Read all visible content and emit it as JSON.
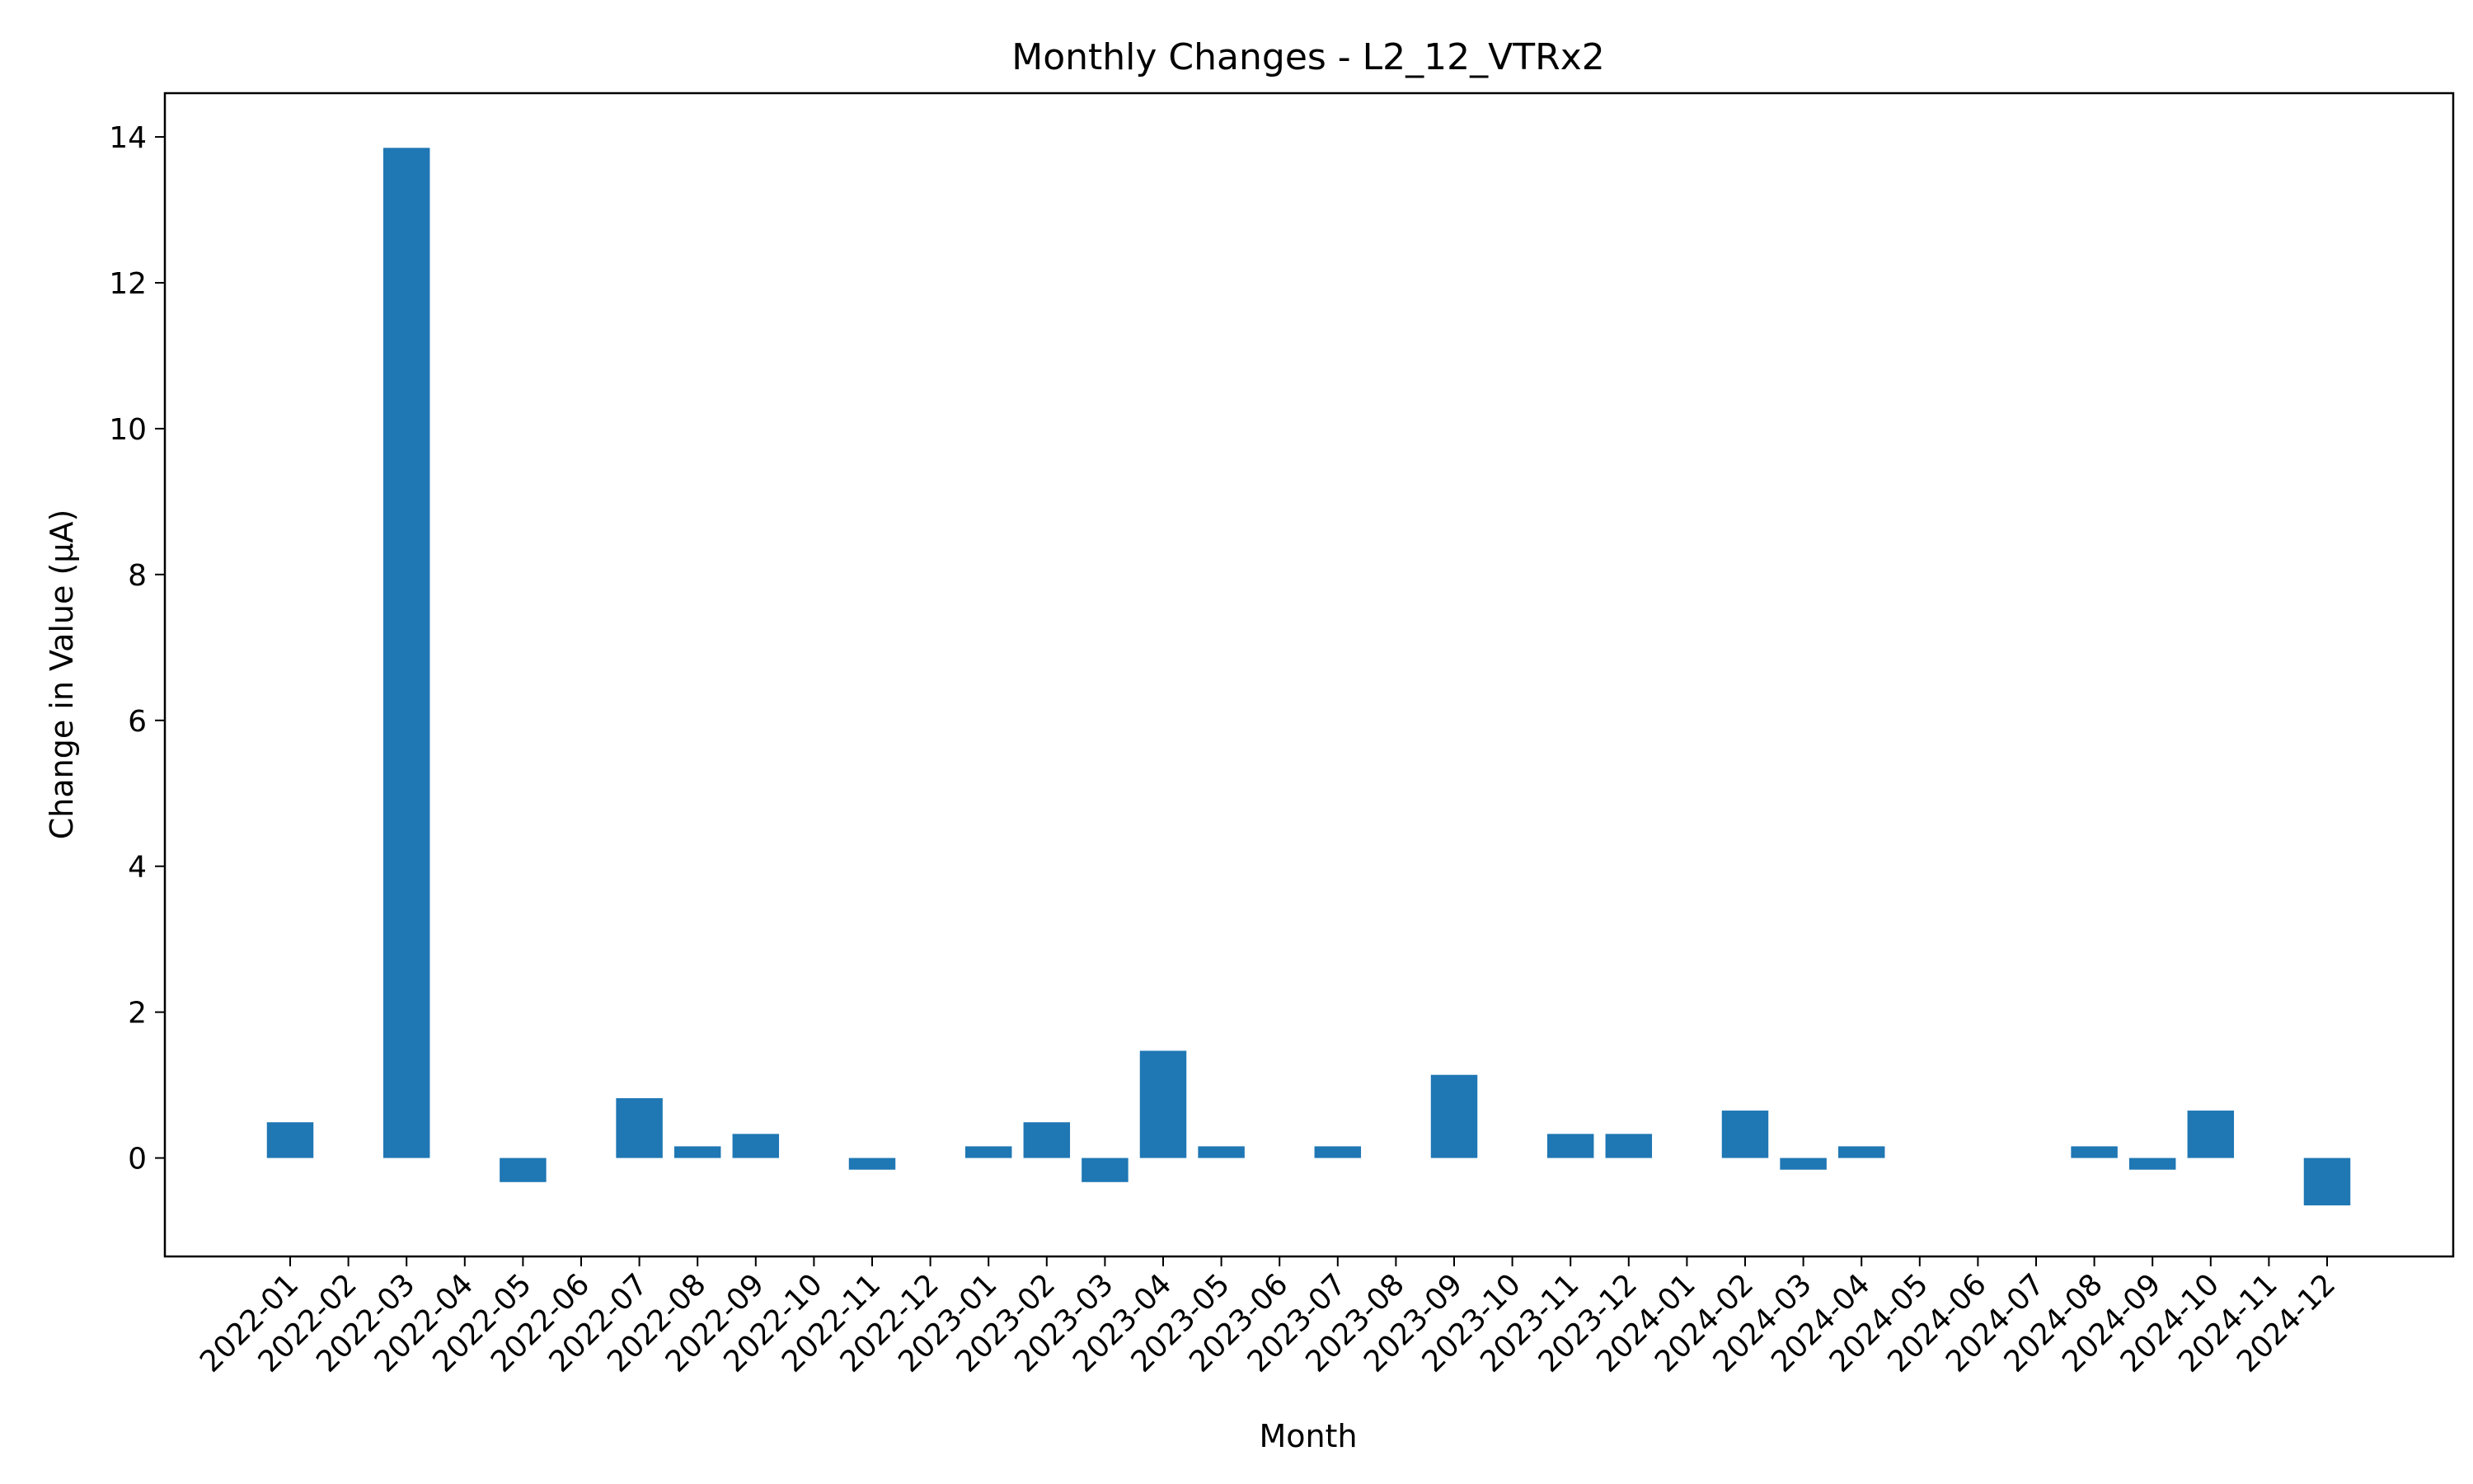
{
  "chart_data": {
    "type": "bar",
    "title": "Monthly Changes - L2_12_VTRx2",
    "xlabel": "Month",
    "ylabel": "Change in Value (μA)",
    "ylim": [
      -1.35,
      14.6
    ],
    "yticks": [
      0,
      2,
      4,
      6,
      8,
      10,
      12,
      14
    ],
    "grid": false,
    "bar_color": "#1f77b4",
    "categories": [
      "2022-01",
      "2022-02",
      "2022-03",
      "2022-04",
      "2022-05",
      "2022-06",
      "2022-07",
      "2022-08",
      "2022-09",
      "2022-10",
      "2022-11",
      "2022-12",
      "2023-01",
      "2023-02",
      "2023-03",
      "2023-04",
      "2023-05",
      "2023-06",
      "2023-07",
      "2023-08",
      "2023-09",
      "2023-10",
      "2023-11",
      "2023-12",
      "2024-01",
      "2024-02",
      "2024-03",
      "2024-04",
      "2024-05",
      "2024-06",
      "2024-07",
      "2024-08",
      "2024-09",
      "2024-10",
      "2024-11",
      "2024-12"
    ],
    "values": [
      0.49,
      0,
      13.85,
      0,
      -0.33,
      0,
      0.82,
      0.16,
      0.33,
      0,
      -0.16,
      0,
      0.16,
      0.49,
      -0.33,
      1.47,
      0.16,
      0,
      0.16,
      0,
      1.14,
      0,
      0.33,
      0.33,
      0,
      0.65,
      -0.16,
      0.16,
      0,
      0,
      0,
      0.16,
      -0.16,
      0.65,
      0,
      -0.65
    ]
  }
}
